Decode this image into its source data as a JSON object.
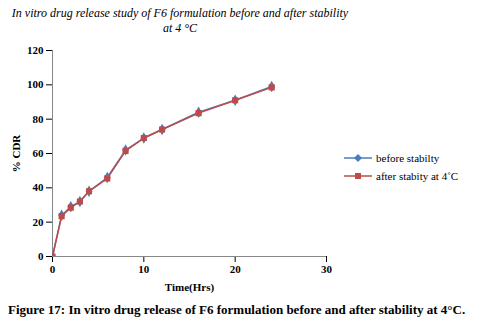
{
  "chart_data": {
    "type": "line",
    "title": "In vitro drug release study of F6 formulation before and after stability at 4 °C",
    "caption": "Figure 17: In vitro drug release of F6 formulation before and after stability at 4°C.",
    "x_label": "Time(Hrs)",
    "y_label": "% CDR",
    "x": [
      0,
      1,
      2,
      3,
      4,
      6,
      8,
      10,
      12,
      16,
      20,
      24
    ],
    "series": [
      {
        "name": "before stabilty",
        "color": "#4a7ebb",
        "marker": "diamond",
        "values": [
          0,
          24,
          29,
          32,
          38,
          46,
          62,
          69,
          74,
          84,
          91,
          99
        ]
      },
      {
        "name": "after stabity at 4˚C",
        "color": "#be4b48",
        "marker": "square",
        "values": [
          0,
          23.5,
          28.5,
          32,
          38,
          45.5,
          61.5,
          69,
          74,
          83.5,
          91,
          98.5
        ]
      }
    ],
    "xlim": [
      0,
      30
    ],
    "xticks": [
      0,
      10,
      20,
      30
    ],
    "ylim": [
      0,
      120
    ],
    "yticks": [
      0,
      20,
      40,
      60,
      80,
      100,
      120
    ],
    "grid": false,
    "legend": "right"
  }
}
